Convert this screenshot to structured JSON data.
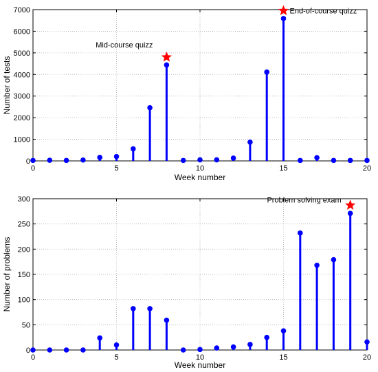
{
  "chart_data": [
    {
      "type": "stem",
      "xlabel": "Week number",
      "ylabel": "Number of tests",
      "xlim": [
        0,
        20
      ],
      "ylim": [
        0,
        7000
      ],
      "xticks": [
        0,
        5,
        10,
        15,
        20
      ],
      "yticks": [
        0,
        1000,
        2000,
        3000,
        4000,
        5000,
        6000,
        7000
      ],
      "grid": true,
      "x": [
        0,
        1,
        2,
        3,
        4,
        5,
        6,
        7,
        8,
        9,
        10,
        11,
        12,
        13,
        14,
        15,
        16,
        17,
        18,
        19,
        20
      ],
      "values": [
        20,
        30,
        20,
        40,
        160,
        200,
        560,
        2460,
        4440,
        20,
        50,
        50,
        130,
        870,
        4110,
        6590,
        20,
        150,
        20,
        20,
        20
      ],
      "color": "#0000ff",
      "annotations": [
        {
          "label": "Mid-course quizz",
          "x": 8,
          "y": 4800,
          "marker": "star",
          "color": "#ff0000"
        },
        {
          "label": "End-of-course quizz",
          "x": 15,
          "y": 6950,
          "marker": "star",
          "color": "#ff0000"
        }
      ]
    },
    {
      "type": "stem",
      "xlabel": "Week number",
      "ylabel": "Number of problems",
      "xlim": [
        0,
        20
      ],
      "ylim": [
        0,
        300
      ],
      "xticks": [
        0,
        5,
        10,
        15,
        20
      ],
      "yticks": [
        0,
        50,
        100,
        150,
        200,
        250,
        300
      ],
      "grid": true,
      "x": [
        0,
        1,
        2,
        3,
        4,
        5,
        6,
        7,
        8,
        9,
        10,
        11,
        12,
        13,
        14,
        15,
        16,
        17,
        18,
        19,
        20
      ],
      "values": [
        0,
        0,
        0,
        0,
        24,
        10,
        82,
        82,
        59,
        0,
        1,
        4,
        6,
        11,
        25,
        38,
        232,
        168,
        179,
        271,
        16
      ],
      "color": "#0000ff",
      "annotations": [
        {
          "label": "Problem solving exam",
          "x": 19,
          "y": 287,
          "marker": "star",
          "color": "#ff0000"
        }
      ]
    }
  ]
}
